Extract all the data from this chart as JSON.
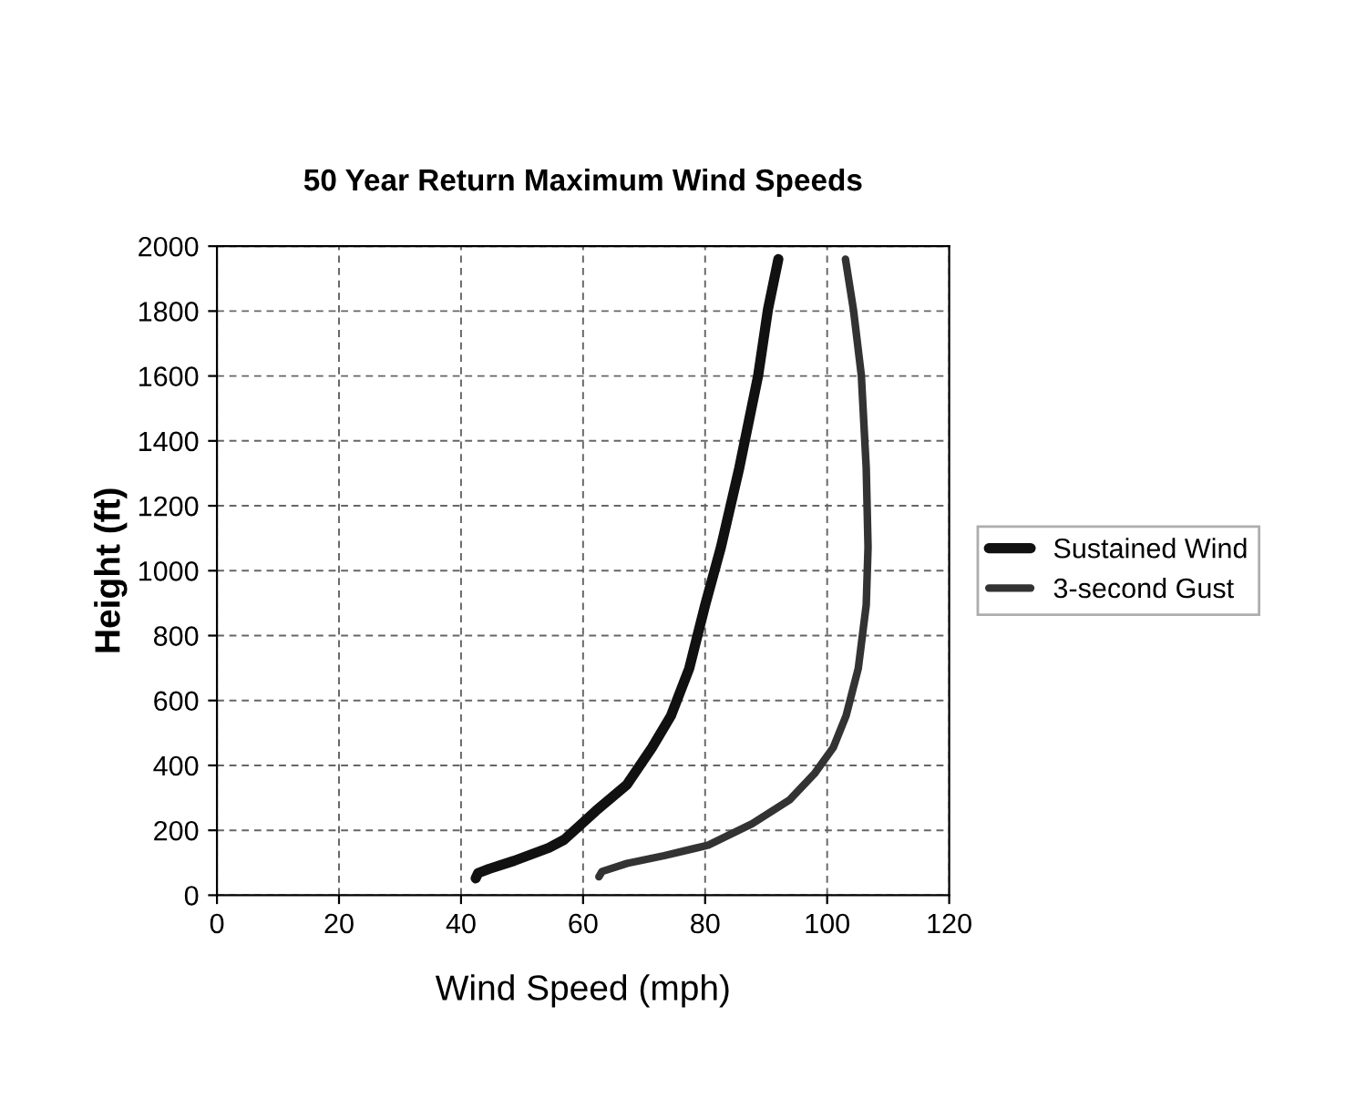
{
  "chart_data": {
    "type": "line",
    "title": "50 Year Return Maximum Wind Speeds",
    "xlabel": "Wind Speed (mph)",
    "ylabel": "Height (ft)",
    "xlim": [
      0,
      120
    ],
    "xticks": [
      0,
      20,
      40,
      60,
      80,
      100,
      120
    ],
    "ylim": [
      0,
      2000
    ],
    "yticks": [
      0,
      200,
      400,
      600,
      800,
      1000,
      1200,
      1400,
      1600,
      1800,
      2000
    ],
    "grid": true,
    "legend": "right",
    "marker": "none",
    "line_style": "solid",
    "series": [
      {
        "name": "Sustained Wind",
        "color": "#111111",
        "x": [
          42.4,
          42.8,
          44.6,
          48.7,
          54.4,
          56.9,
          62.1,
          67.2,
          71.3,
          74.4,
          77.4,
          80.0,
          82.6,
          85.6,
          88.7,
          90.3,
          92
        ],
        "values": [
          52,
          68,
          81,
          106,
          146,
          171,
          260,
          341,
          455,
          553,
          699,
          894,
          1073,
          1317,
          1602,
          1805,
          1960
        ]
      },
      {
        "name": "3-second Gust",
        "color": "#333333",
        "x": [
          62.6,
          63.1,
          67.2,
          73.3,
          80.5,
          87.7,
          93.8,
          97.9,
          101.0,
          103.1,
          105.1,
          106.4,
          106.7,
          106.4,
          105.6,
          104.3,
          103
        ],
        "values": [
          57,
          73,
          98,
          122,
          154,
          220,
          293,
          374,
          455,
          553,
          699,
          894,
          1073,
          1317,
          1602,
          1805,
          1960
        ]
      }
    ]
  }
}
